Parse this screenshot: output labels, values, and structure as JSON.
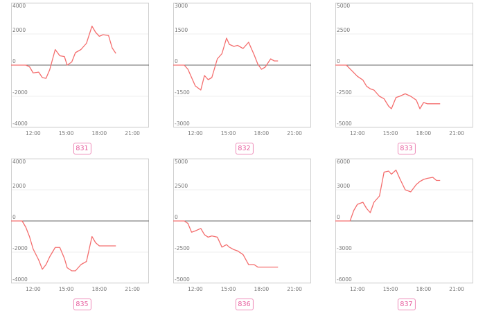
{
  "colors": {
    "line": "#f46d6d",
    "frame": "#cfcfcf",
    "zero_line": "#666666",
    "grid": "#efefef",
    "badge_text": "#e6579a",
    "badge_border": "#ee8ab8"
  },
  "chart_data": [
    {
      "type": "line",
      "label": "831",
      "x_ticks": [
        "12:00",
        "15:00",
        "18:00",
        "21:00"
      ],
      "y_ticks": [
        4000,
        2000,
        0,
        -2000,
        -4000
      ],
      "ylim": [
        -4000,
        4000
      ],
      "xlim": [
        "10:00",
        "22:30"
      ],
      "x": [
        "10:00",
        "11:00",
        "11:20",
        "11:40",
        "12:00",
        "12:30",
        "12:50",
        "13:10",
        "13:30",
        "14:00",
        "14:25",
        "14:50",
        "15:05",
        "15:30",
        "15:50",
        "16:20",
        "16:50",
        "17:20",
        "17:40",
        "18:00",
        "18:20",
        "18:50",
        "19:10",
        "19:30"
      ],
      "values": [
        0,
        0,
        0,
        -100,
        -500,
        -450,
        -800,
        -850,
        -300,
        1000,
        600,
        550,
        0,
        200,
        800,
        1000,
        1400,
        2500,
        2100,
        1850,
        1950,
        1900,
        1100,
        750
      ]
    },
    {
      "type": "line",
      "label": "832",
      "x_ticks": [
        "12:00",
        "15:00",
        "18:00",
        "21:00"
      ],
      "y_ticks": [
        3000,
        1500,
        0,
        -1500,
        -3000
      ],
      "ylim": [
        -3000,
        3000
      ],
      "xlim": [
        "10:00",
        "22:30"
      ],
      "x": [
        "10:00",
        "11:00",
        "11:20",
        "11:40",
        "12:00",
        "12:30",
        "12:50",
        "13:10",
        "13:30",
        "14:00",
        "14:25",
        "14:50",
        "15:05",
        "15:30",
        "15:50",
        "16:20",
        "16:50",
        "17:20",
        "17:40",
        "18:00",
        "18:20",
        "18:50",
        "19:10",
        "19:30"
      ],
      "values": [
        0,
        0,
        -200,
        -600,
        -1000,
        -1200,
        -500,
        -700,
        -600,
        300,
        550,
        1300,
        1000,
        900,
        950,
        800,
        1100,
        500,
        50,
        -200,
        -100,
        300,
        200,
        200
      ]
    },
    {
      "type": "line",
      "label": "833",
      "x_ticks": [
        "12:00",
        "15:00",
        "18:00",
        "21:00"
      ],
      "y_ticks": [
        5000,
        2500,
        0,
        -2500,
        -5000
      ],
      "ylim": [
        -5000,
        5000
      ],
      "xlim": [
        "10:00",
        "22:30"
      ],
      "x": [
        "10:00",
        "11:00",
        "11:20",
        "11:40",
        "12:00",
        "12:30",
        "12:50",
        "13:10",
        "13:30",
        "14:00",
        "14:25",
        "14:50",
        "15:05",
        "15:30",
        "15:50",
        "16:20",
        "16:50",
        "17:20",
        "17:40",
        "18:00",
        "18:20",
        "18:50",
        "19:10",
        "19:30"
      ],
      "values": [
        0,
        0,
        -300,
        -600,
        -900,
        -1200,
        -1700,
        -1900,
        -2000,
        -2500,
        -2700,
        -3300,
        -3500,
        -2600,
        -2500,
        -2300,
        -2500,
        -2800,
        -3500,
        -3000,
        -3100,
        -3100,
        -3100,
        -3100
      ]
    },
    {
      "type": "line",
      "label": "835",
      "x_ticks": [
        "12:00",
        "15:00",
        "18:00",
        "21:00"
      ],
      "y_ticks": [
        4000,
        2000,
        0,
        -2000,
        -4000
      ],
      "ylim": [
        -4000,
        4000
      ],
      "xlim": [
        "10:00",
        "22:30"
      ],
      "x": [
        "10:00",
        "11:00",
        "11:20",
        "11:40",
        "12:00",
        "12:30",
        "12:50",
        "13:10",
        "13:30",
        "14:00",
        "14:25",
        "14:50",
        "15:05",
        "15:30",
        "15:50",
        "16:20",
        "16:50",
        "17:20",
        "17:40",
        "18:00",
        "18:20",
        "18:50",
        "19:10",
        "19:30"
      ],
      "values": [
        0,
        0,
        -400,
        -1000,
        -1800,
        -2500,
        -3100,
        -2800,
        -2300,
        -1700,
        -1700,
        -2400,
        -3000,
        -3200,
        -3200,
        -2800,
        -2600,
        -1000,
        -1400,
        -1600,
        -1600,
        -1600,
        -1600,
        -1600
      ]
    },
    {
      "type": "line",
      "label": "836",
      "x_ticks": [
        "12:00",
        "15:00",
        "18:00",
        "21:00"
      ],
      "y_ticks": [
        5000,
        2500,
        0,
        -2500,
        -5000
      ],
      "ylim": [
        -5000,
        5000
      ],
      "xlim": [
        "10:00",
        "22:30"
      ],
      "x": [
        "10:00",
        "11:00",
        "11:20",
        "11:40",
        "12:00",
        "12:30",
        "12:50",
        "13:10",
        "13:30",
        "14:00",
        "14:25",
        "14:50",
        "15:05",
        "15:30",
        "15:50",
        "16:20",
        "16:50",
        "17:20",
        "17:40",
        "18:00",
        "18:20",
        "18:50",
        "19:10",
        "19:30"
      ],
      "values": [
        0,
        0,
        -200,
        -900,
        -800,
        -600,
        -1100,
        -1300,
        -1200,
        -1300,
        -2100,
        -1900,
        -2100,
        -2300,
        -2400,
        -2700,
        -3500,
        -3500,
        -3700,
        -3700,
        -3700,
        -3700,
        -3700,
        -3700
      ]
    },
    {
      "type": "line",
      "label": "837",
      "x_ticks": [
        "12:00",
        "15:00",
        "18:00",
        "21:00"
      ],
      "y_ticks": [
        6000,
        3000,
        0,
        -3000,
        -6000
      ],
      "ylim": [
        -6000,
        6000
      ],
      "xlim": [
        "10:00",
        "22:30"
      ],
      "x": [
        "10:00",
        "11:00",
        "11:20",
        "11:40",
        "12:00",
        "12:30",
        "12:50",
        "13:10",
        "13:30",
        "14:00",
        "14:25",
        "14:50",
        "15:05",
        "15:30",
        "15:50",
        "16:20",
        "16:50",
        "17:20",
        "17:40",
        "18:00",
        "18:20",
        "18:50",
        "19:10",
        "19:30"
      ],
      "values": [
        0,
        0,
        0,
        1000,
        1600,
        1800,
        1200,
        800,
        1800,
        2400,
        4700,
        4800,
        4500,
        4900,
        4100,
        3000,
        2800,
        3500,
        3800,
        4000,
        4100,
        4200,
        3900,
        3900
      ]
    }
  ]
}
